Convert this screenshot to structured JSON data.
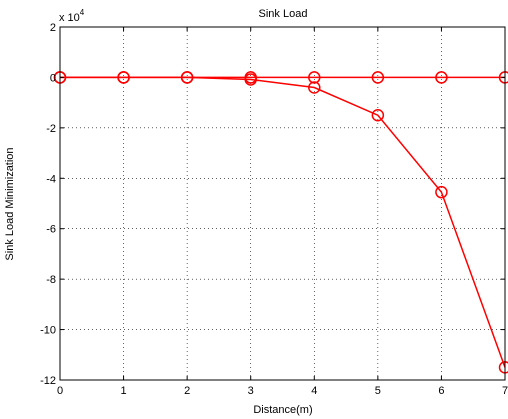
{
  "chart_data": {
    "type": "line",
    "title": "Sink Load",
    "xlabel": "Distance(m)",
    "ylabel": "Sink Load Minimization",
    "y_multiplier_base": "x 10",
    "y_multiplier_exp": "4",
    "xlim": [
      0,
      7
    ],
    "ylim": [
      -12,
      2
    ],
    "x_ticks": [
      0,
      1,
      2,
      3,
      4,
      5,
      6,
      7
    ],
    "y_ticks": [
      2,
      0,
      -2,
      -4,
      -6,
      -8,
      -10,
      -12
    ],
    "grid": true,
    "line_color": "#ff0000",
    "grid_color": "#000000",
    "series": [
      {
        "values_x": [
          0,
          1,
          2,
          3,
          4,
          5,
          6,
          7
        ],
        "values_y": [
          0,
          0,
          0,
          -0.08,
          -0.4,
          -1.5,
          -4.55,
          -11.5
        ]
      },
      {
        "values_x": [
          0,
          1,
          2,
          3,
          4,
          5,
          6,
          7
        ],
        "values_y": [
          0,
          0,
          0,
          0,
          0,
          0,
          0,
          0
        ]
      }
    ]
  }
}
